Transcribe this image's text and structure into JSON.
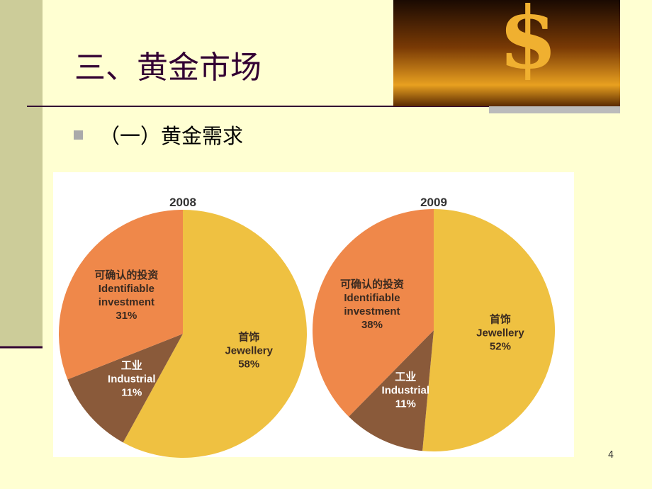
{
  "slide": {
    "title": "三、黄金市场",
    "bullet": "（一）黄金需求",
    "page_number": "4"
  },
  "chart_data": [
    {
      "type": "pie",
      "title": "2008",
      "categories": [
        "Jewellery",
        "Industrial",
        "Identifiable investment"
      ],
      "categories_zh": [
        "首饰",
        "工业",
        "可确认的投资"
      ],
      "values": [
        58,
        11,
        31
      ],
      "value_labels": [
        "58%",
        "11%",
        "31%"
      ],
      "colors": [
        "#efc141",
        "#8a5a3a",
        "#ef884a"
      ]
    },
    {
      "type": "pie",
      "title": "2009",
      "categories": [
        "Jewellery",
        "Industrial",
        "Identifiable investment"
      ],
      "categories_zh": [
        "首饰",
        "工业",
        "可确认的投资"
      ],
      "values": [
        52,
        11,
        38
      ],
      "value_labels": [
        "52%",
        "11%",
        "38%"
      ],
      "colors": [
        "#efc141",
        "#8a5a3a",
        "#ef884a"
      ]
    }
  ]
}
